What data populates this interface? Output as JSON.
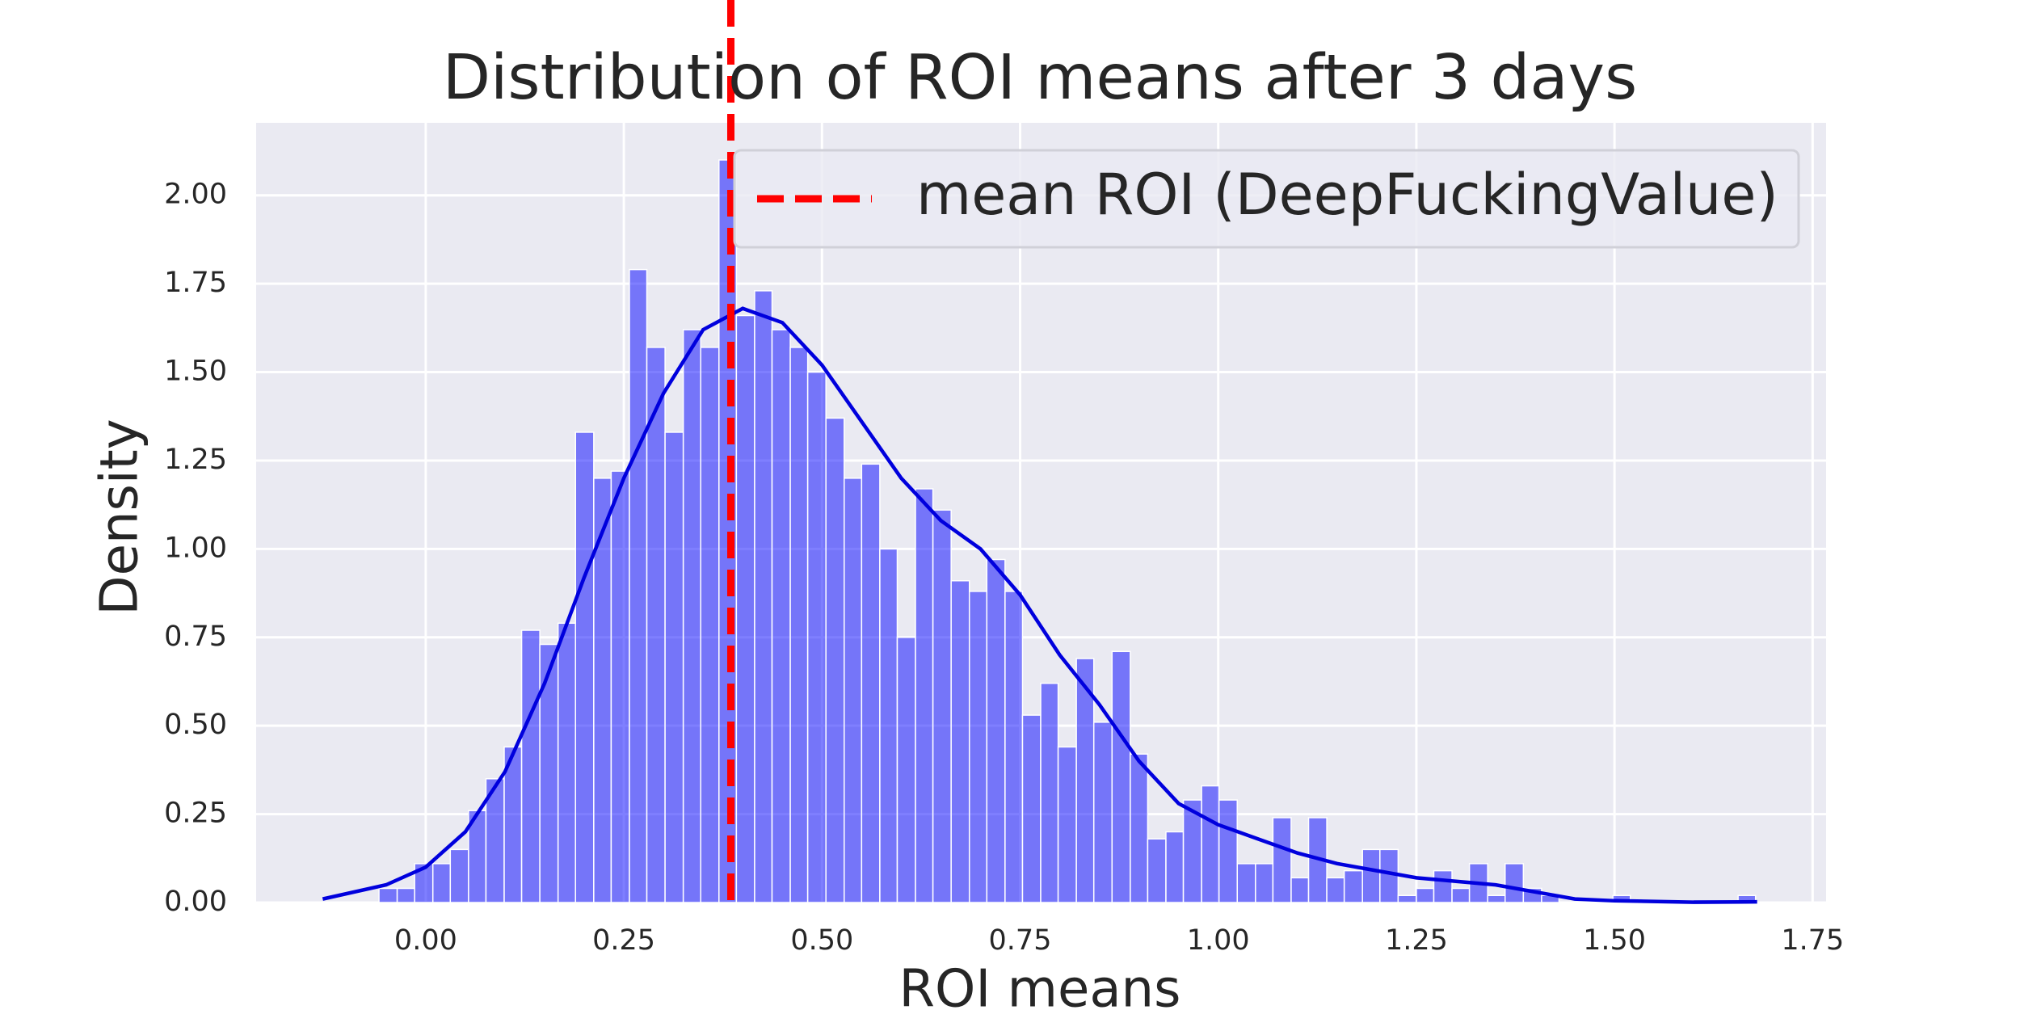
{
  "chart_data": {
    "type": "histogram",
    "title": "Distribution of ROI means after 3 days",
    "x_label": "ROI means",
    "y_label": "Density",
    "color": "#0000ff",
    "grid": true,
    "legend": "upper right",
    "xlim": [
      -0.214,
      1.767
    ],
    "ylim": [
      0,
      2.205
    ],
    "xticks": [
      {
        "value": 0,
        "label": "0.00"
      },
      {
        "value": 0.25,
        "label": "0.25"
      },
      {
        "value": 0.5,
        "label": "0.50"
      },
      {
        "value": 0.75,
        "label": "0.75"
      },
      {
        "value": 1,
        "label": "1.00"
      },
      {
        "value": 1.25,
        "label": "1.25"
      },
      {
        "value": 1.5,
        "label": "1.50"
      },
      {
        "value": 1.75,
        "label": "1.75"
      }
    ],
    "yticks": [
      {
        "value": 0,
        "label": "0.00"
      },
      {
        "value": 0.25,
        "label": "0.25"
      },
      {
        "value": 0.5,
        "label": "0.50"
      },
      {
        "value": 0.75,
        "label": "0.75"
      },
      {
        "value": 1,
        "label": "1.00"
      },
      {
        "value": 1.25,
        "label": "1.25"
      },
      {
        "value": 1.5,
        "label": "1.50"
      },
      {
        "value": 1.75,
        "label": "1.75"
      },
      {
        "value": 2,
        "label": "2.00"
      }
    ],
    "bins": [
      -0.059,
      -0.036,
      -0.014,
      0.009,
      0.031,
      0.054,
      0.076,
      0.099,
      0.121,
      0.144,
      0.167,
      0.189,
      0.212,
      0.234,
      0.257,
      0.279,
      0.302,
      0.325,
      0.347,
      0.37,
      0.392,
      0.415,
      0.437,
      0.46,
      0.482,
      0.505,
      0.528,
      0.55,
      0.573,
      0.595,
      0.618,
      0.64,
      0.663,
      0.686,
      0.708,
      0.731,
      0.753,
      0.776,
      0.798,
      0.821,
      0.843,
      0.866,
      0.889,
      0.911,
      0.934,
      0.956,
      0.979,
      1.001,
      1.024,
      1.047,
      1.069,
      1.092,
      1.114,
      1.137,
      1.159,
      1.182,
      1.204,
      1.227,
      1.25,
      1.272,
      1.295,
      1.317,
      1.34,
      1.362,
      1.385,
      1.408,
      1.43,
      1.453,
      1.475,
      1.498,
      1.52,
      1.543,
      1.566,
      1.588,
      1.611,
      1.633,
      1.656,
      1.678
    ],
    "values": [
      0.04,
      0.04,
      0.11,
      0.11,
      0.15,
      0.26,
      0.35,
      0.44,
      0.77,
      0.73,
      0.79,
      1.33,
      1.2,
      1.22,
      1.79,
      1.57,
      1.33,
      1.62,
      1.57,
      2.1,
      1.66,
      1.73,
      1.62,
      1.57,
      1.5,
      1.37,
      1.2,
      1.24,
      1.0,
      0.75,
      1.17,
      1.11,
      0.91,
      0.88,
      0.97,
      0.88,
      0.53,
      0.62,
      0.44,
      0.69,
      0.51,
      0.71,
      0.42,
      0.18,
      0.2,
      0.29,
      0.33,
      0.29,
      0.11,
      0.11,
      0.24,
      0.07,
      0.24,
      0.07,
      0.09,
      0.15,
      0.15,
      0.02,
      0.04,
      0.09,
      0.04,
      0.11,
      0.02,
      0.11,
      0.04,
      0.02,
      0,
      0,
      0,
      0.02,
      0,
      0,
      0,
      0,
      0,
      0,
      0.02
    ],
    "kde": {
      "color": "#0000dd",
      "x": [
        -0.13,
        -0.05,
        0,
        0.05,
        0.1,
        0.15,
        0.2,
        0.25,
        0.3,
        0.35,
        0.4,
        0.45,
        0.5,
        0.55,
        0.6,
        0.65,
        0.7,
        0.75,
        0.8,
        0.85,
        0.9,
        0.95,
        1.0,
        1.05,
        1.1,
        1.15,
        1.2,
        1.25,
        1.3,
        1.35,
        1.4,
        1.45,
        1.5,
        1.6,
        1.68
      ],
      "y": [
        0.01,
        0.05,
        0.1,
        0.2,
        0.37,
        0.62,
        0.92,
        1.2,
        1.44,
        1.62,
        1.68,
        1.64,
        1.52,
        1.36,
        1.2,
        1.08,
        1.0,
        0.87,
        0.7,
        0.56,
        0.4,
        0.28,
        0.22,
        0.18,
        0.14,
        0.11,
        0.09,
        0.07,
        0.06,
        0.05,
        0.03,
        0.01,
        0.005,
        0.001,
        0.002
      ]
    },
    "mean_line": {
      "x": 0.385,
      "label": "mean ROI (DeepFuckingValue)",
      "color": "#ff0000"
    }
  }
}
